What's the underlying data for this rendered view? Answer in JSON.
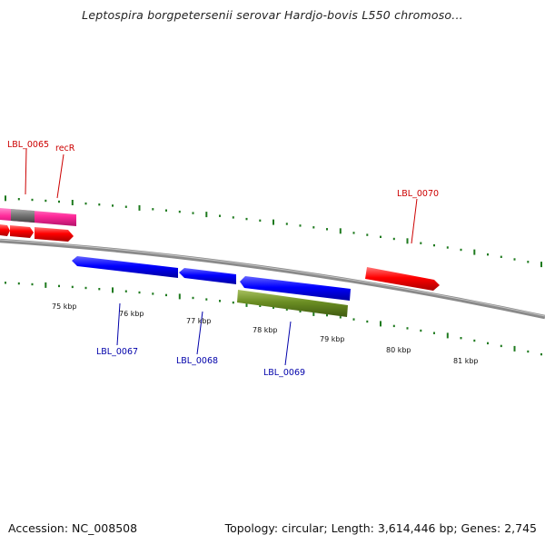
{
  "title": "Leptospira borgpetersenii serovar Hardjo-bovis L550 chromoso...",
  "footer": {
    "accession": "Accession: NC_008508",
    "summary": "Topology: circular; Length: 3,614,446 bp; Genes: 2,745"
  },
  "colors": {
    "backbone": "#8a8a8a",
    "ticks": "#1e7a1e",
    "forward_label": "#cc0000",
    "reverse_label": "#0000aa",
    "red_gene": "#ff0000",
    "pink_gene": "#ff2a9a",
    "gray_gene": "#777777",
    "blue_gene": "#0000ff",
    "olive_gene": "#6b8e23"
  },
  "kbp_labels": [
    "75 kbp",
    "76 kbp",
    "77 kbp",
    "78 kbp",
    "79 kbp",
    "80 kbp",
    "81 kbp"
  ],
  "gene_labels": {
    "lbl_0065": "LBL_0065",
    "recr": "recR",
    "lbl_0070": "LBL_0070",
    "lbl_0067": "LBL_0067",
    "lbl_0068": "LBL_0068",
    "lbl_0069": "LBL_0069"
  }
}
